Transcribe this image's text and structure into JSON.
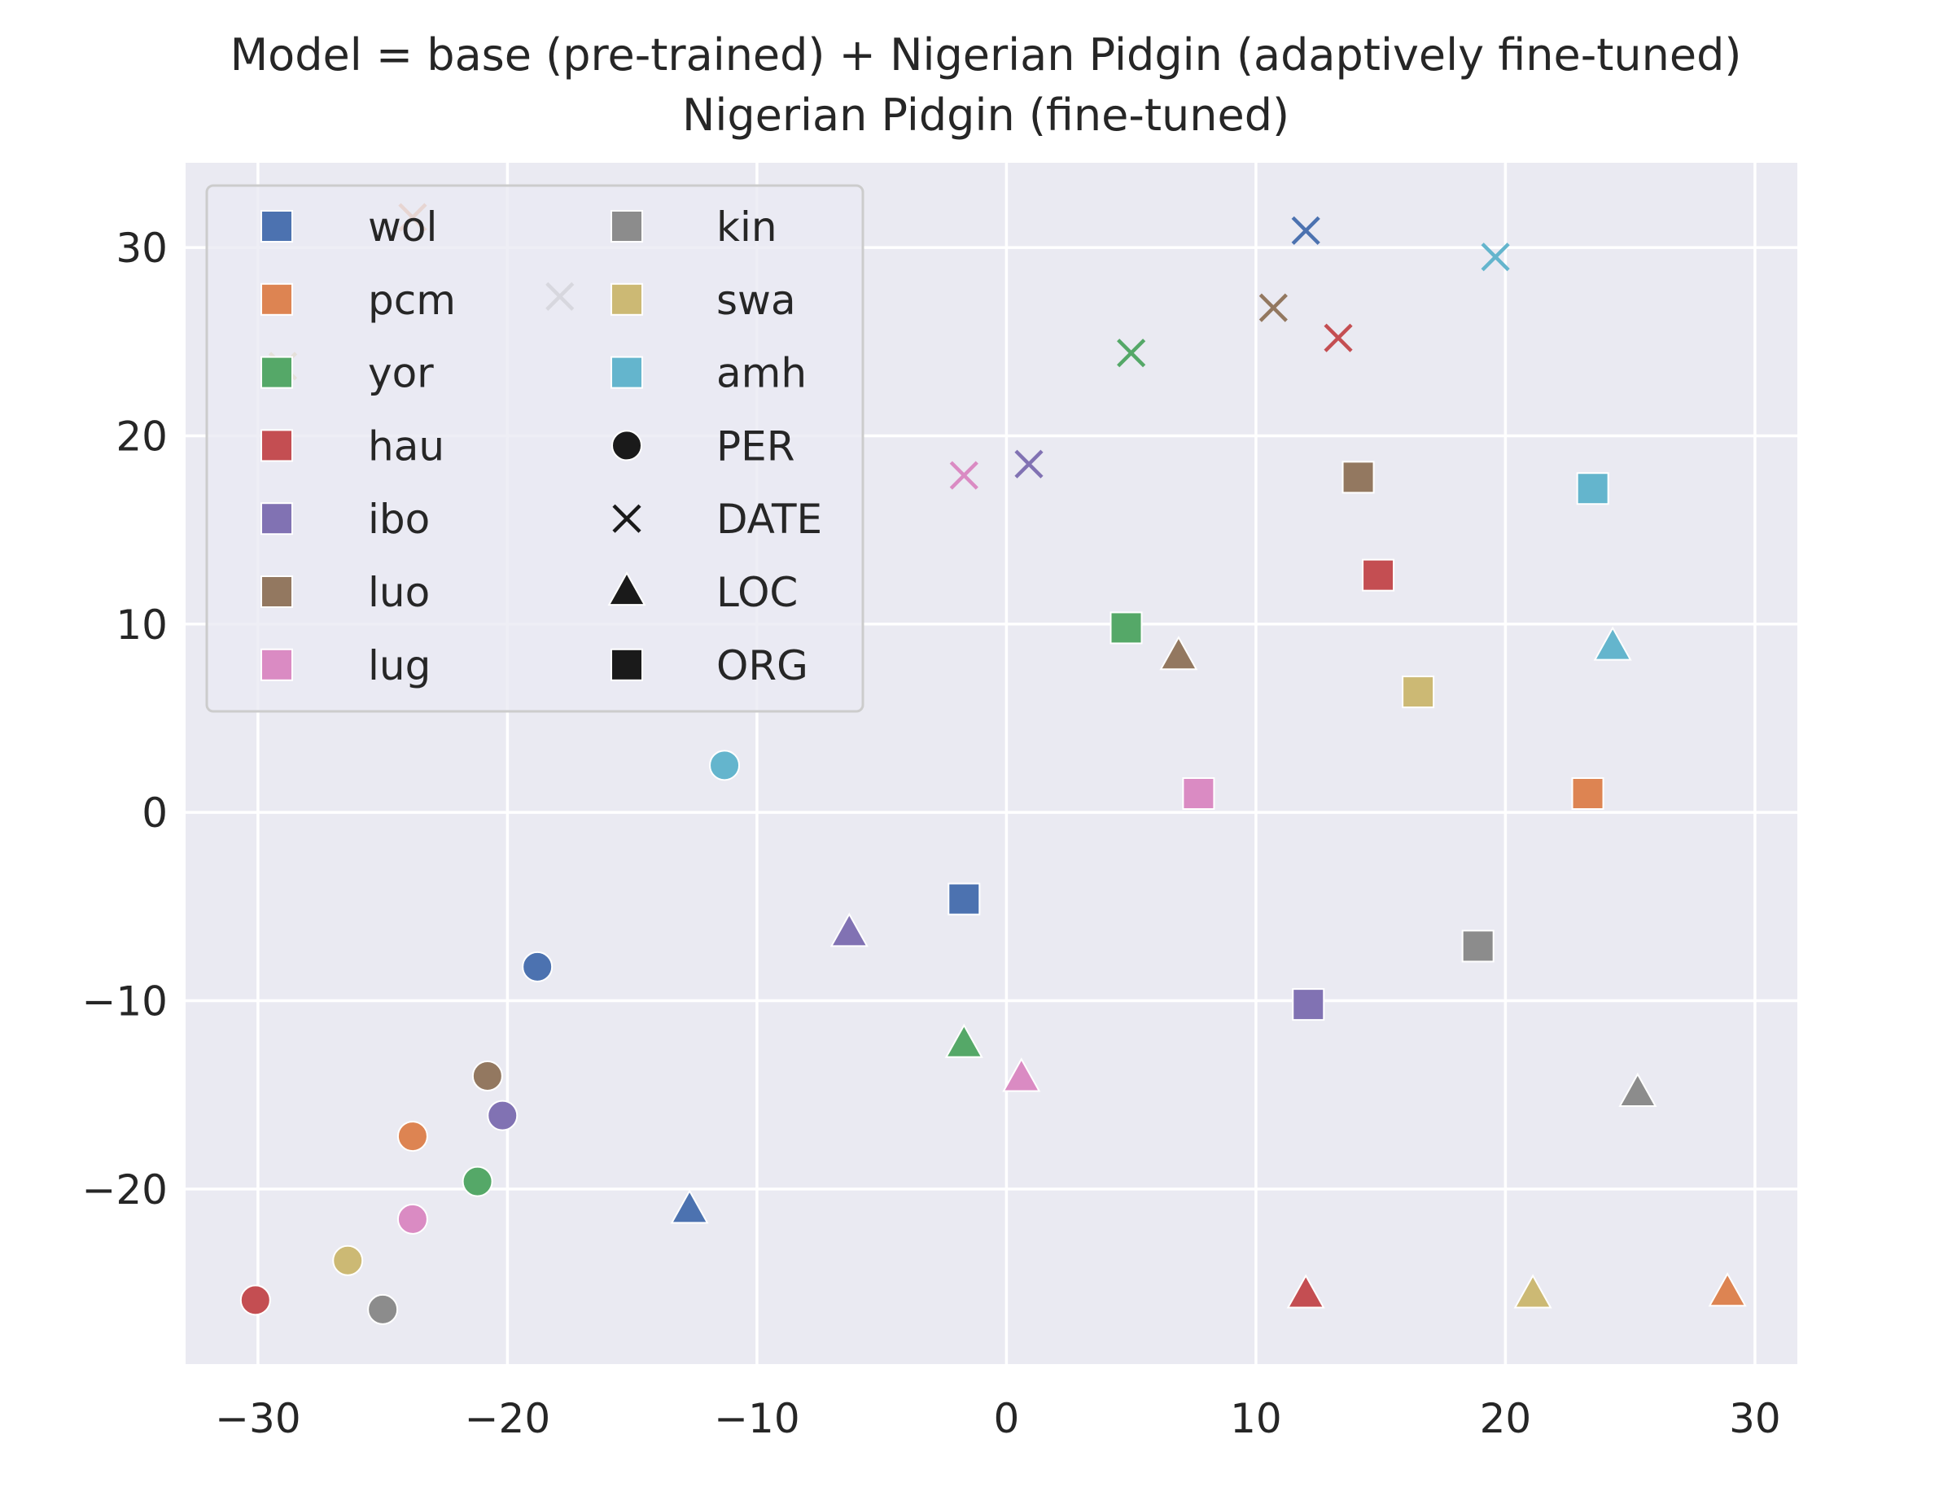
{
  "chart_data": {
    "type": "scatter",
    "title": "Model = base (pre-trained) + Nigerian Pidgin (adaptively fine-tuned)",
    "subtitle": "Nigerian Pidgin (fine-tuned)",
    "xlabel": "",
    "ylabel": "",
    "xlim": [
      -32.9,
      31.7
    ],
    "ylim": [
      -29.3,
      34.5
    ],
    "xticks": [
      -30,
      -20,
      -10,
      0,
      10,
      20,
      30
    ],
    "yticks": [
      -20,
      -10,
      0,
      10,
      20,
      30
    ],
    "grid": true,
    "legend_position": "top-left",
    "languages": [
      {
        "name": "wol",
        "color": "#4c72b0"
      },
      {
        "name": "pcm",
        "color": "#dd8452"
      },
      {
        "name": "yor",
        "color": "#55a868"
      },
      {
        "name": "hau",
        "color": "#c44e52"
      },
      {
        "name": "ibo",
        "color": "#8172b3"
      },
      {
        "name": "luo",
        "color": "#937860"
      },
      {
        "name": "lug",
        "color": "#da8bc3"
      },
      {
        "name": "kin",
        "color": "#8c8c8c"
      },
      {
        "name": "swa",
        "color": "#ccb974"
      },
      {
        "name": "amh",
        "color": "#64b5cd"
      }
    ],
    "entity_types": [
      {
        "name": "PER",
        "marker": "circle"
      },
      {
        "name": "DATE",
        "marker": "x"
      },
      {
        "name": "LOC",
        "marker": "triangle"
      },
      {
        "name": "ORG",
        "marker": "square"
      }
    ],
    "points": [
      {
        "lang": "wol",
        "entity": "PER",
        "x": -18.8,
        "y": -8.2
      },
      {
        "lang": "pcm",
        "entity": "PER",
        "x": -23.8,
        "y": -17.2
      },
      {
        "lang": "yor",
        "entity": "PER",
        "x": -21.2,
        "y": -19.6
      },
      {
        "lang": "hau",
        "entity": "PER",
        "x": -30.1,
        "y": -25.9
      },
      {
        "lang": "ibo",
        "entity": "PER",
        "x": -20.2,
        "y": -16.1
      },
      {
        "lang": "luo",
        "entity": "PER",
        "x": -20.8,
        "y": -14.0
      },
      {
        "lang": "lug",
        "entity": "PER",
        "x": -23.8,
        "y": -21.6
      },
      {
        "lang": "kin",
        "entity": "PER",
        "x": -25.0,
        "y": -26.4
      },
      {
        "lang": "swa",
        "entity": "PER",
        "x": -26.4,
        "y": -23.8
      },
      {
        "lang": "amh",
        "entity": "PER",
        "x": -11.3,
        "y": 2.5
      },
      {
        "lang": "wol",
        "entity": "DATE",
        "x": 12.0,
        "y": 30.9
      },
      {
        "lang": "pcm",
        "entity": "DATE",
        "x": -23.8,
        "y": 31.6
      },
      {
        "lang": "yor",
        "entity": "DATE",
        "x": 5.0,
        "y": 24.4
      },
      {
        "lang": "hau",
        "entity": "DATE",
        "x": 13.3,
        "y": 25.2
      },
      {
        "lang": "ibo",
        "entity": "DATE",
        "x": 0.9,
        "y": 18.5
      },
      {
        "lang": "luo",
        "entity": "DATE",
        "x": 10.7,
        "y": 26.8
      },
      {
        "lang": "lug",
        "entity": "DATE",
        "x": -1.7,
        "y": 17.9
      },
      {
        "lang": "kin",
        "entity": "DATE",
        "x": -17.9,
        "y": 27.4
      },
      {
        "lang": "swa",
        "entity": "DATE",
        "x": -29.0,
        "y": 23.7
      },
      {
        "lang": "amh",
        "entity": "DATE",
        "x": 19.6,
        "y": 29.5
      },
      {
        "lang": "wol",
        "entity": "LOC",
        "x": -12.7,
        "y": -21.1
      },
      {
        "lang": "pcm",
        "entity": "LOC",
        "x": 28.9,
        "y": -25.5
      },
      {
        "lang": "yor",
        "entity": "LOC",
        "x": -1.7,
        "y": -12.3
      },
      {
        "lang": "hau",
        "entity": "LOC",
        "x": 12.0,
        "y": -25.6
      },
      {
        "lang": "ibo",
        "entity": "LOC",
        "x": -6.3,
        "y": -6.4
      },
      {
        "lang": "luo",
        "entity": "LOC",
        "x": 6.9,
        "y": 8.3
      },
      {
        "lang": "lug",
        "entity": "LOC",
        "x": 0.6,
        "y": -14.1
      },
      {
        "lang": "kin",
        "entity": "LOC",
        "x": 25.3,
        "y": -14.9
      },
      {
        "lang": "swa",
        "entity": "LOC",
        "x": 21.1,
        "y": -25.6
      },
      {
        "lang": "amh",
        "entity": "LOC",
        "x": 24.3,
        "y": 8.8
      },
      {
        "lang": "wol",
        "entity": "ORG",
        "x": -1.7,
        "y": -4.6
      },
      {
        "lang": "pcm",
        "entity": "ORG",
        "x": 23.3,
        "y": 1.0
      },
      {
        "lang": "yor",
        "entity": "ORG",
        "x": 4.8,
        "y": 9.8
      },
      {
        "lang": "hau",
        "entity": "ORG",
        "x": 14.9,
        "y": 12.6
      },
      {
        "lang": "ibo",
        "entity": "ORG",
        "x": 12.1,
        "y": -10.2
      },
      {
        "lang": "luo",
        "entity": "ORG",
        "x": 14.1,
        "y": 17.8
      },
      {
        "lang": "lug",
        "entity": "ORG",
        "x": 7.7,
        "y": 1.0
      },
      {
        "lang": "kin",
        "entity": "ORG",
        "x": 18.9,
        "y": -7.1
      },
      {
        "lang": "swa",
        "entity": "ORG",
        "x": 16.5,
        "y": 6.4
      },
      {
        "lang": "amh",
        "entity": "ORG",
        "x": 23.5,
        "y": 17.2
      }
    ]
  },
  "colors": {
    "plot_background": "#eaeaf2",
    "grid": "#ffffff",
    "legend_marker_black": "#1a1a1a",
    "text": "#262626"
  }
}
